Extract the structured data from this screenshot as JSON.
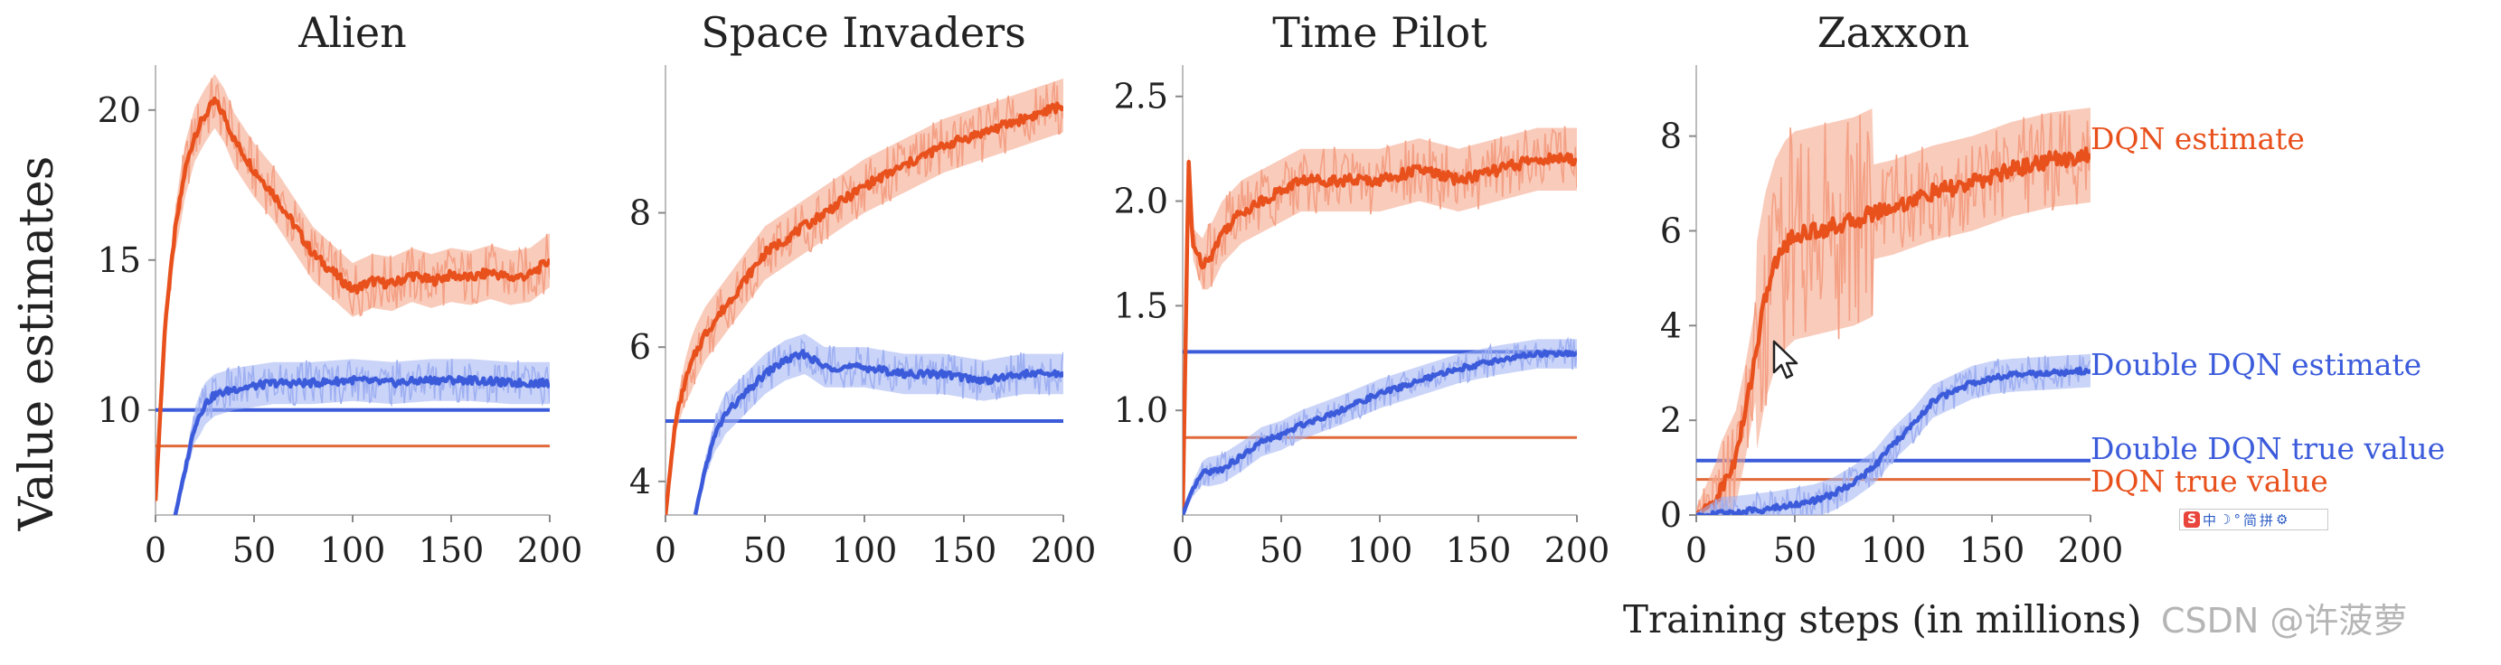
{
  "figure": {
    "ylabel": "Value estimates",
    "xlabel": "Training steps (in millions)",
    "watermark": "CSDN @许菠萝",
    "colors": {
      "dqn": "#e8501c",
      "dqn_band": "#f4a084",
      "double": "#3b5bdb",
      "double_band": "#9fb0f2",
      "dqn_true": "#e06a3a"
    }
  },
  "legend": {
    "dqn_estimate": "DQN estimate",
    "double_estimate": "Double DQN estimate",
    "double_true": "Double DQN true value",
    "dqn_true": "DQN true value"
  },
  "ime": {
    "logo": "S",
    "items": [
      "中",
      "☽",
      "°",
      "简",
      "拼",
      "⚙"
    ]
  },
  "cursor_icon": "mouse-pointer-icon",
  "chart_data": [
    {
      "type": "line",
      "title": "Alien",
      "xlim": [
        0,
        200
      ],
      "ylim": [
        6.5,
        21.5
      ],
      "xticks": [
        0,
        50,
        100,
        150,
        200
      ],
      "yticks": [
        10,
        15,
        20
      ],
      "dqn_true": 8.8,
      "double_true": 10.0,
      "series": [
        {
          "name": "DQN estimate",
          "x": [
            0,
            5,
            10,
            15,
            20,
            25,
            30,
            35,
            40,
            50,
            60,
            70,
            80,
            90,
            100,
            110,
            120,
            130,
            140,
            150,
            160,
            170,
            180,
            190,
            200
          ],
          "y": [
            7,
            13,
            16,
            18,
            19.2,
            19.8,
            20.3,
            19.8,
            19,
            18,
            17.2,
            16.2,
            15.2,
            14.6,
            14,
            14.3,
            14.2,
            14.5,
            14.3,
            14.5,
            14.4,
            14.6,
            14.4,
            14.5,
            15
          ],
          "spread": 0.9
        },
        {
          "name": "Double DQN estimate",
          "x": [
            10,
            15,
            20,
            25,
            30,
            40,
            50,
            60,
            80,
            100,
            120,
            140,
            160,
            180,
            200
          ],
          "y": [
            6.5,
            8,
            9.5,
            10.2,
            10.5,
            10.7,
            10.8,
            10.9,
            10.9,
            11,
            10.9,
            11,
            11,
            10.9,
            10.9
          ],
          "spread": 0.7
        }
      ]
    },
    {
      "type": "line",
      "title": "Space Invaders",
      "xlim": [
        0,
        200
      ],
      "ylim": [
        3.5,
        10.2
      ],
      "xticks": [
        0,
        50,
        100,
        150,
        200
      ],
      "yticks": [
        4,
        6,
        8
      ],
      "dqn_true": 4.9,
      "double_true": 4.9,
      "series": [
        {
          "name": "DQN estimate",
          "x": [
            0,
            5,
            10,
            15,
            20,
            30,
            40,
            50,
            60,
            70,
            80,
            90,
            100,
            120,
            140,
            160,
            180,
            200
          ],
          "y": [
            3.5,
            4.9,
            5.5,
            5.9,
            6.2,
            6.6,
            7,
            7.4,
            7.6,
            7.8,
            8,
            8.2,
            8.4,
            8.7,
            9,
            9.2,
            9.4,
            9.6
          ],
          "spread": 0.4
        },
        {
          "name": "Double DQN estimate",
          "x": [
            15,
            20,
            25,
            30,
            40,
            50,
            60,
            70,
            80,
            100,
            120,
            140,
            160,
            180,
            200
          ],
          "y": [
            3.5,
            4.2,
            4.7,
            5,
            5.3,
            5.6,
            5.8,
            5.9,
            5.7,
            5.7,
            5.6,
            5.6,
            5.5,
            5.6,
            5.6
          ],
          "spread": 0.3
        }
      ]
    },
    {
      "type": "line",
      "title": "Time Pilot",
      "xlim": [
        0,
        200
      ],
      "ylim": [
        0.5,
        2.65
      ],
      "xticks": [
        0,
        50,
        100,
        150,
        200
      ],
      "yticks": [
        1.0,
        1.5,
        2.0,
        2.5
      ],
      "dqn_true": 0.87,
      "double_true": 1.28,
      "series": [
        {
          "name": "DQN estimate",
          "x": [
            0,
            3,
            5,
            10,
            15,
            20,
            30,
            40,
            50,
            60,
            80,
            100,
            120,
            140,
            160,
            180,
            200
          ],
          "y": [
            0.5,
            2.2,
            1.8,
            1.7,
            1.75,
            1.85,
            1.95,
            2.0,
            2.05,
            2.1,
            2.1,
            2.1,
            2.15,
            2.1,
            2.15,
            2.2,
            2.2
          ],
          "spread": 0.15
        },
        {
          "name": "Double DQN estimate",
          "x": [
            0,
            5,
            10,
            20,
            30,
            40,
            50,
            60,
            80,
            100,
            120,
            140,
            160,
            180,
            200
          ],
          "y": [
            0.5,
            0.62,
            0.7,
            0.72,
            0.78,
            0.85,
            0.88,
            0.93,
            1.0,
            1.08,
            1.14,
            1.2,
            1.24,
            1.27,
            1.27
          ],
          "spread": 0.07
        }
      ]
    },
    {
      "type": "line",
      "title": "Zaxxon",
      "xlim": [
        0,
        200
      ],
      "ylim": [
        0,
        9.5
      ],
      "xticks": [
        0,
        50,
        100,
        150,
        200
      ],
      "yticks": [
        0,
        2,
        4,
        6,
        8
      ],
      "dqn_true": 0.75,
      "double_true": 1.15,
      "series": [
        {
          "name": "DQN estimate",
          "x": [
            0,
            10,
            20,
            25,
            30,
            35,
            40,
            45,
            50,
            60,
            70,
            80,
            90,
            100,
            120,
            140,
            160,
            180,
            200
          ],
          "y": [
            0,
            0.3,
            1.2,
            2.2,
            3.4,
            4.6,
            5.3,
            5.7,
            5.9,
            6.0,
            6.1,
            6.2,
            6.4,
            6.5,
            6.8,
            7.0,
            7.3,
            7.5,
            7.6
          ],
          "spread": 1.0
        },
        {
          "name": "Double DQN estimate",
          "x": [
            0,
            20,
            40,
            60,
            70,
            80,
            90,
            100,
            110,
            120,
            130,
            140,
            150,
            160,
            180,
            200
          ],
          "y": [
            0,
            0.05,
            0.15,
            0.3,
            0.45,
            0.7,
            1.0,
            1.5,
            1.9,
            2.4,
            2.6,
            2.8,
            2.9,
            2.95,
            3.0,
            3.05
          ],
          "spread": 0.35
        }
      ]
    }
  ]
}
